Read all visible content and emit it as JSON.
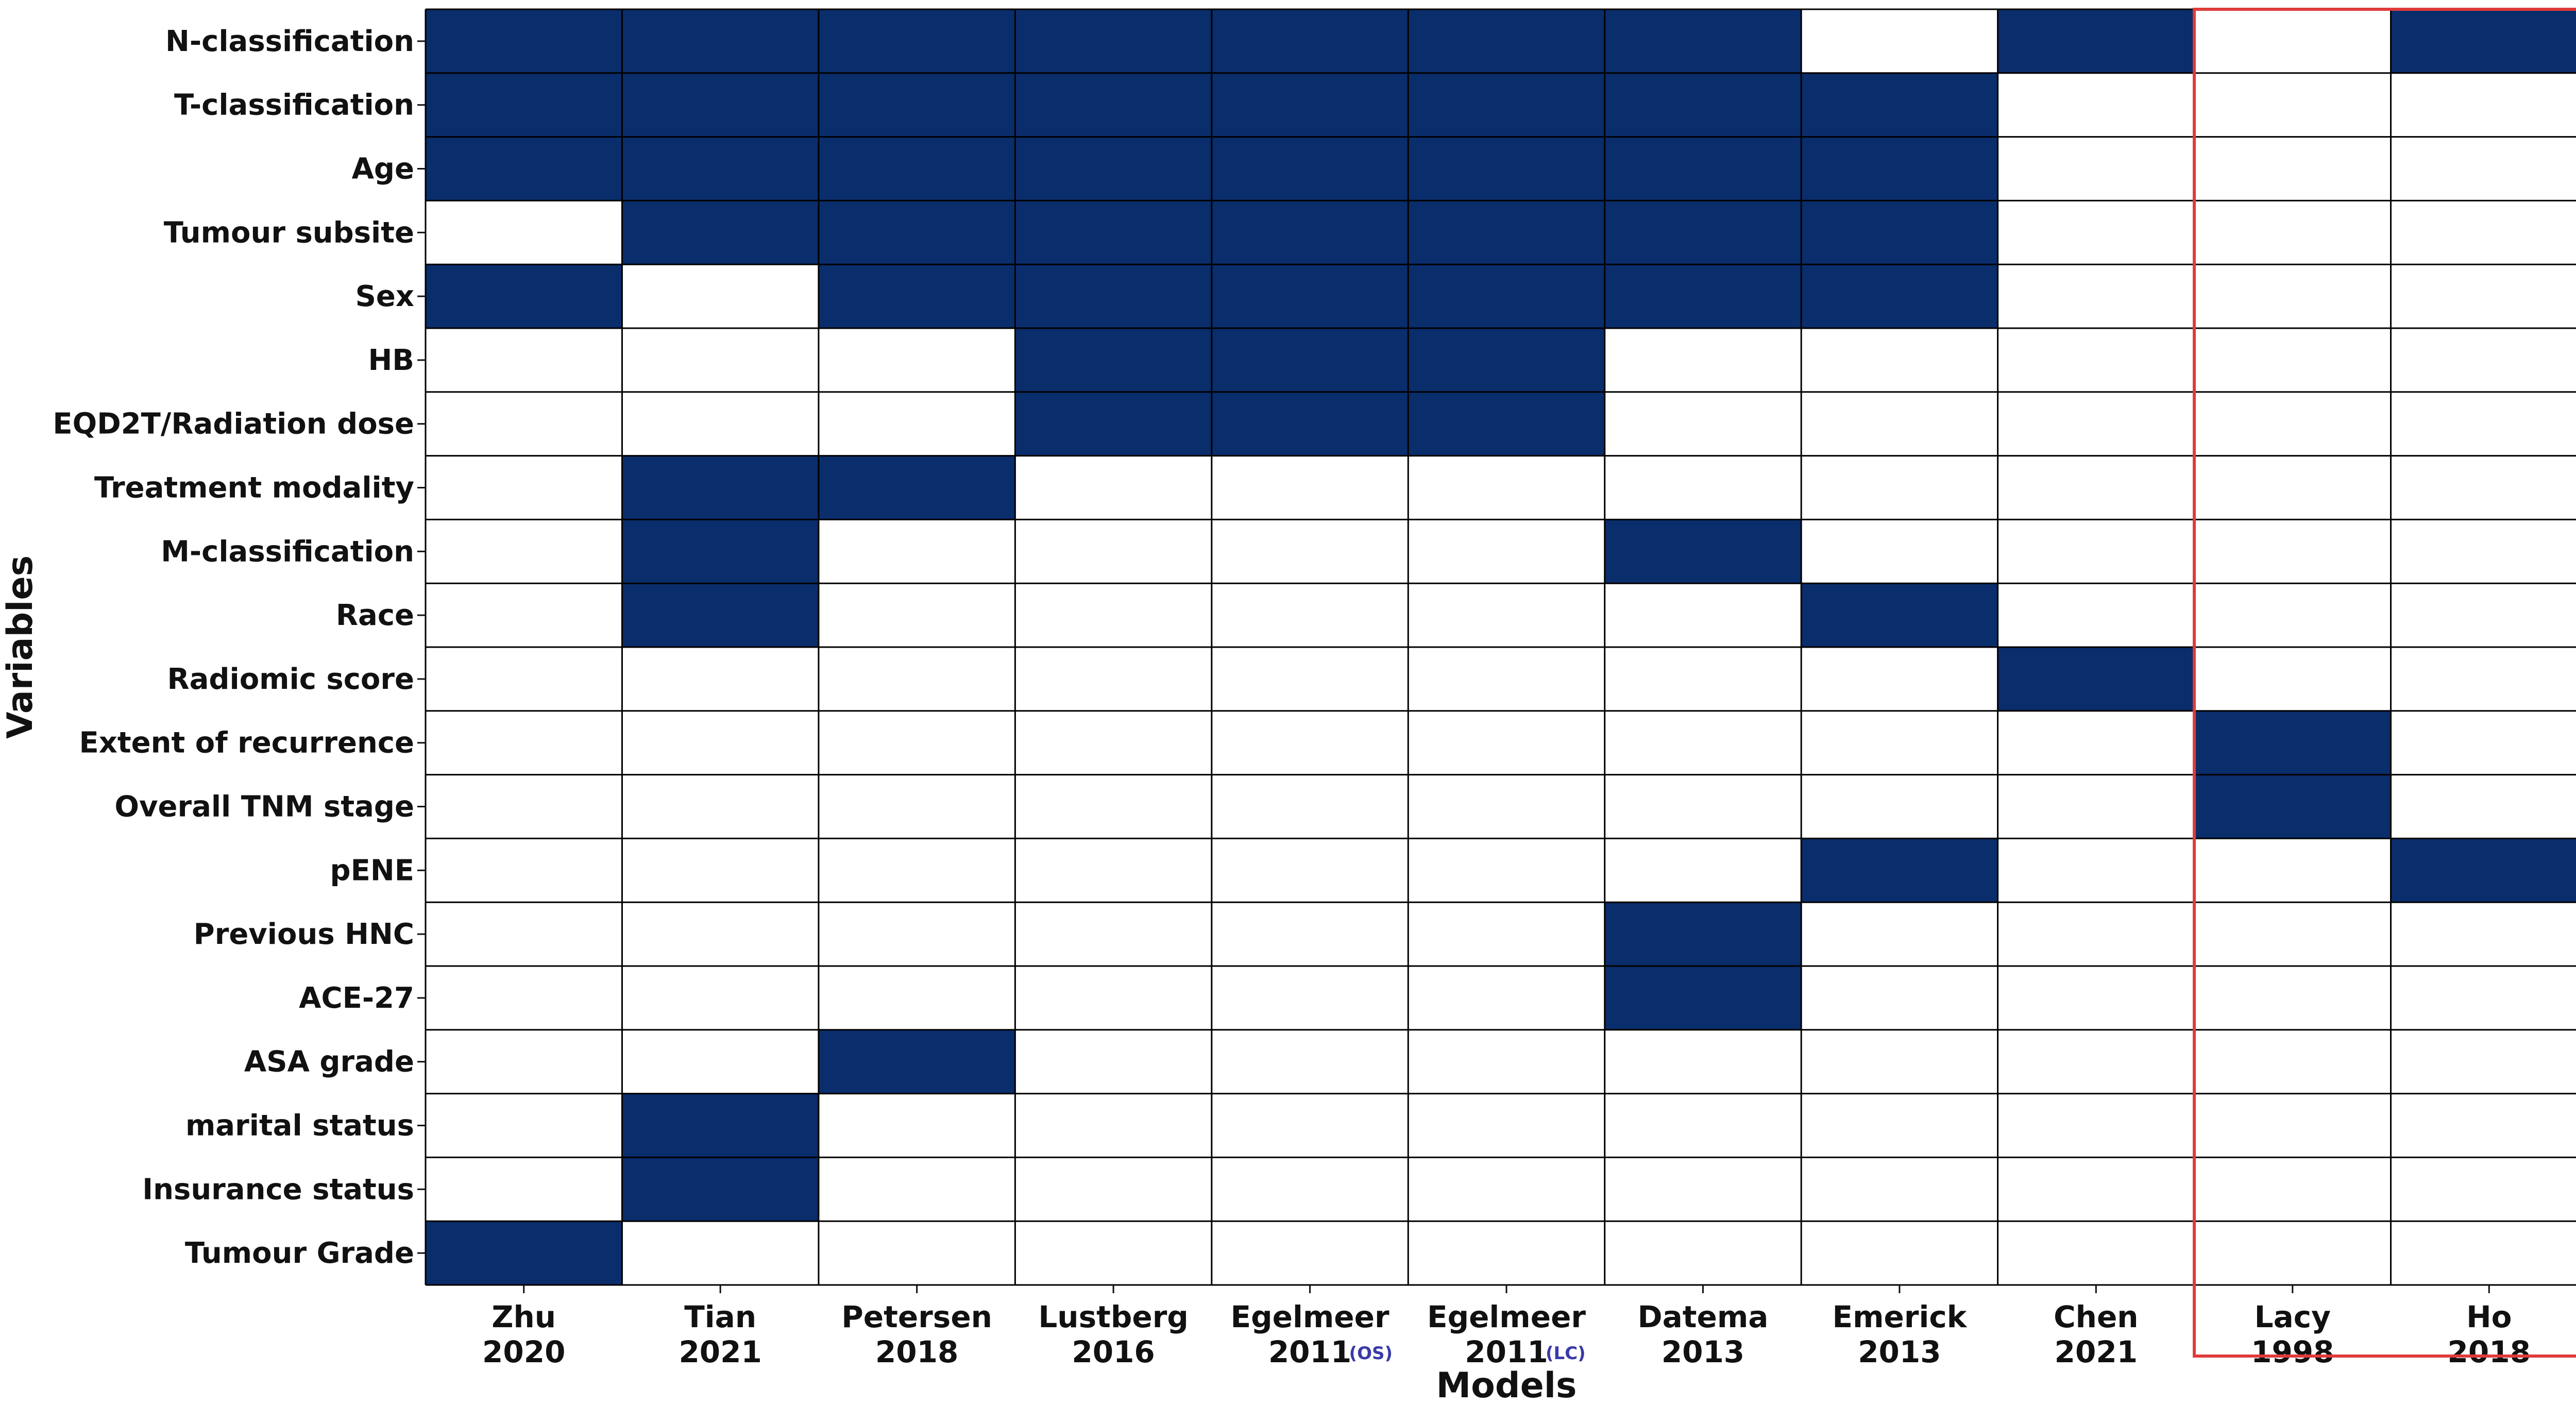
{
  "chart_data": {
    "type": "heatmap",
    "xlabel": "Models",
    "ylabel": "Variables",
    "colors": {
      "filled": "#0a2d6b",
      "empty": "#ffffff",
      "grid": "#000000",
      "highlight": "#e03a3a",
      "superscript": "#3a3aa8"
    },
    "columns": [
      {
        "name": "Zhu",
        "year": "2020",
        "suffix": ""
      },
      {
        "name": "Tian",
        "year": "2021",
        "suffix": ""
      },
      {
        "name": "Petersen",
        "year": "2018",
        "suffix": ""
      },
      {
        "name": "Lustberg",
        "year": "2016",
        "suffix": ""
      },
      {
        "name": "Egelmeer",
        "year": "2011",
        "suffix": "(OS)"
      },
      {
        "name": "Egelmeer",
        "year": "2011",
        "suffix": "(LC)"
      },
      {
        "name": "Datema",
        "year": "2013",
        "suffix": ""
      },
      {
        "name": "Emerick",
        "year": "2013",
        "suffix": ""
      },
      {
        "name": "Chen",
        "year": "2021",
        "suffix": ""
      },
      {
        "name": "Lacy",
        "year": "1998",
        "suffix": ""
      },
      {
        "name": "Ho",
        "year": "2018",
        "suffix": ""
      }
    ],
    "rows": [
      "N-classification",
      "T-classification",
      "Age",
      "Tumour subsite",
      "Sex",
      "HB",
      "EQD2T/Radiation dose",
      "Treatment modality",
      "M-classification",
      "Race",
      "Radiomic score",
      "Extent of recurrence",
      "Overall TNM stage",
      "pENE",
      "Previous HNC",
      "ACE-27",
      "ASA grade",
      "marital status",
      "Insurance status",
      "Tumour Grade"
    ],
    "values": [
      [
        1,
        1,
        1,
        1,
        1,
        1,
        1,
        0,
        1,
        0,
        1
      ],
      [
        1,
        1,
        1,
        1,
        1,
        1,
        1,
        1,
        0,
        0,
        0
      ],
      [
        1,
        1,
        1,
        1,
        1,
        1,
        1,
        1,
        0,
        0,
        0
      ],
      [
        0,
        1,
        1,
        1,
        1,
        1,
        1,
        1,
        0,
        0,
        0
      ],
      [
        1,
        0,
        1,
        1,
        1,
        1,
        1,
        1,
        0,
        0,
        0
      ],
      [
        0,
        0,
        0,
        1,
        1,
        1,
        0,
        0,
        0,
        0,
        0
      ],
      [
        0,
        0,
        0,
        1,
        1,
        1,
        0,
        0,
        0,
        0,
        0
      ],
      [
        0,
        1,
        1,
        0,
        0,
        0,
        0,
        0,
        0,
        0,
        0
      ],
      [
        0,
        1,
        0,
        0,
        0,
        0,
        1,
        0,
        0,
        0,
        0
      ],
      [
        0,
        1,
        0,
        0,
        0,
        0,
        0,
        1,
        0,
        0,
        0
      ],
      [
        0,
        0,
        0,
        0,
        0,
        0,
        0,
        0,
        1,
        0,
        0
      ],
      [
        0,
        0,
        0,
        0,
        0,
        0,
        0,
        0,
        0,
        1,
        0
      ],
      [
        0,
        0,
        0,
        0,
        0,
        0,
        0,
        0,
        0,
        1,
        0
      ],
      [
        0,
        0,
        0,
        0,
        0,
        0,
        0,
        1,
        0,
        0,
        1
      ],
      [
        0,
        0,
        0,
        0,
        0,
        0,
        1,
        0,
        0,
        0,
        0
      ],
      [
        0,
        0,
        0,
        0,
        0,
        0,
        1,
        0,
        0,
        0,
        0
      ],
      [
        0,
        0,
        1,
        0,
        0,
        0,
        0,
        0,
        0,
        0,
        0
      ],
      [
        0,
        1,
        0,
        0,
        0,
        0,
        0,
        0,
        0,
        0,
        0
      ],
      [
        0,
        1,
        0,
        0,
        0,
        0,
        0,
        0,
        0,
        0,
        0
      ],
      [
        1,
        0,
        0,
        0,
        0,
        0,
        0,
        0,
        0,
        0,
        0
      ]
    ],
    "highlighted_columns": [
      "Lacy",
      "Ho"
    ]
  }
}
